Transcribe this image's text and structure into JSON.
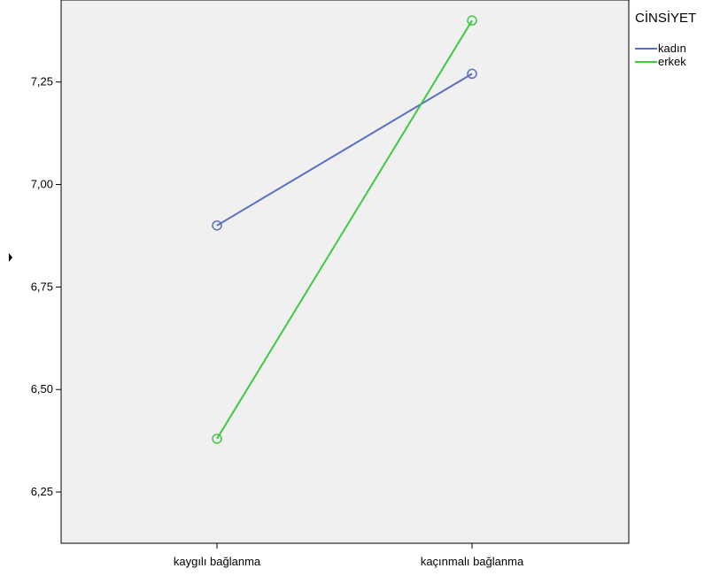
{
  "chart_data": {
    "type": "line",
    "categories": [
      "kaygılı bağlanma",
      "kaçınmalı bağlanma"
    ],
    "series": [
      {
        "name": "kadın",
        "values": [
          6.9,
          7.27
        ],
        "color": "#5b6fc4"
      },
      {
        "name": "erkek",
        "values": [
          6.38,
          7.4
        ],
        "color": "#3fc940"
      }
    ],
    "yticks": [
      "6,25",
      "6,50",
      "6,75",
      "7,00",
      "7,25"
    ],
    "ytick_values": [
      6.25,
      6.5,
      6.75,
      7.0,
      7.25
    ],
    "ylim": [
      6.125,
      7.45
    ],
    "grid": false,
    "marker": "open-circle",
    "legend": {
      "title": "CİNSİYET",
      "position": "top-right"
    },
    "plot_background": "#f0f0f0",
    "xlabel": "",
    "ylabel": "",
    "title": ""
  }
}
